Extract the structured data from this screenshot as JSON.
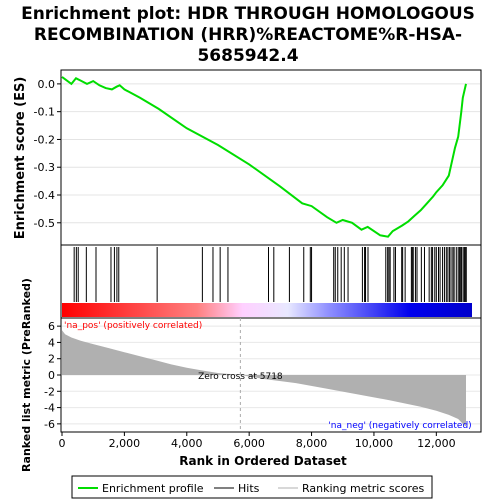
{
  "title_lines": [
    "Enrichment plot: HDR THROUGH HOMOLOGOUS",
    "RECOMBINATION (HRR)%REACTOME%R-HSA-",
    "5685942.4"
  ],
  "colors": {
    "es_line": "#00dd00",
    "hits": "#000000",
    "metric_fill": "#b0b0b0",
    "pos_label": "#ff0000",
    "neg_label": "#0000ff",
    "zero_line": "#aaaaaa"
  },
  "chart_data": [
    {
      "type": "line",
      "name": "enrichment-profile",
      "ylabel": "Enrichment score (ES)",
      "xlim": [
        0,
        13400
      ],
      "ylim": [
        -0.58,
        0.05
      ],
      "yticks": [
        0.0,
        -0.1,
        -0.2,
        -0.3,
        -0.4,
        -0.5
      ],
      "ytick_labels": [
        "0.0",
        "-0.1",
        "-0.2",
        "-0.3",
        "-0.4",
        "-0.5"
      ],
      "x": [
        0,
        300,
        450,
        600,
        800,
        1000,
        1200,
        1400,
        1600,
        1750,
        1850,
        2000,
        2500,
        3100,
        4000,
        5000,
        6000,
        7000,
        7700,
        8000,
        8500,
        8800,
        9000,
        9300,
        9600,
        9800,
        10200,
        10450,
        10600,
        10900,
        11100,
        11300,
        11500,
        11700,
        11900,
        12000,
        12200,
        12400,
        12500,
        12600,
        12700,
        12800,
        12850,
        12950
      ],
      "y": [
        0.025,
        0.0,
        0.02,
        0.012,
        0.0,
        0.01,
        -0.005,
        -0.015,
        -0.02,
        -0.01,
        -0.005,
        -0.02,
        -0.05,
        -0.09,
        -0.16,
        -0.22,
        -0.29,
        -0.37,
        -0.43,
        -0.44,
        -0.48,
        -0.5,
        -0.49,
        -0.5,
        -0.525,
        -0.515,
        -0.545,
        -0.55,
        -0.53,
        -0.51,
        -0.495,
        -0.475,
        -0.455,
        -0.43,
        -0.405,
        -0.39,
        -0.365,
        -0.33,
        -0.28,
        -0.23,
        -0.19,
        -0.1,
        -0.05,
        0.0
      ]
    },
    {
      "type": "barcode",
      "name": "hits",
      "positions": [
        390,
        460,
        520,
        780,
        1090,
        1570,
        1680,
        1760,
        1820,
        3050,
        4500,
        4840,
        5070,
        5320,
        6620,
        6790,
        7290,
        7750,
        7960,
        8000,
        8710,
        8760,
        8840,
        8950,
        9050,
        9170,
        9630,
        9700,
        9730,
        9810,
        10380,
        10440,
        10480,
        10520,
        10640,
        10690,
        10890,
        10920,
        11000,
        11200,
        11230,
        11260,
        11330,
        11380,
        11520,
        11620,
        11770,
        11840,
        11880,
        11950,
        12000,
        12070,
        12120,
        12200,
        12260,
        12320,
        12370,
        12420,
        12470,
        12530,
        12570,
        12640,
        12700,
        12740,
        12780,
        12810,
        12860,
        12900,
        12930,
        12960
      ]
    },
    {
      "type": "area",
      "name": "ranked-list-metric",
      "ylabel": "Ranked list metric (PreRanked)",
      "xlabel": "Rank in Ordered Dataset",
      "xlim": [
        0,
        13400
      ],
      "ylim": [
        -7,
        7
      ],
      "xticks": [
        0,
        2000,
        4000,
        6000,
        8000,
        10000,
        12000
      ],
      "xtick_labels": [
        "0",
        "2,000",
        "4,000",
        "6,000",
        "8,000",
        "10,000",
        "12,000"
      ],
      "yticks": [
        6,
        4,
        2,
        0,
        -2,
        -4,
        -6
      ],
      "ytick_labels": [
        "6",
        "4",
        "2",
        "0",
        "-2",
        "-4",
        "-6"
      ],
      "x": [
        0,
        100,
        300,
        600,
        1000,
        1500,
        2000,
        2500,
        3000,
        3500,
        4000,
        4500,
        5000,
        5718,
        6500,
        7500,
        8500,
        9500,
        10500,
        11500,
        12000,
        12400,
        12700,
        12900,
        12950
      ],
      "y": [
        5.5,
        5.0,
        4.6,
        4.2,
        3.8,
        3.3,
        2.8,
        2.3,
        1.8,
        1.3,
        0.9,
        0.55,
        0.25,
        0.0,
        -0.5,
        -1.0,
        -1.7,
        -2.4,
        -3.1,
        -3.9,
        -4.4,
        -4.9,
        -5.4,
        -6.2,
        -6.3
      ],
      "annotations": [
        "Zero cross at 5718",
        "'na_pos' (positively correlated)",
        "'na_neg' (negatively correlated)"
      ],
      "zero_cross": 5718
    }
  ],
  "legend": {
    "placement": "bottom",
    "items": [
      {
        "label": "Enrichment profile",
        "color": "#00dd00"
      },
      {
        "label": "Hits",
        "color": "#000000"
      },
      {
        "label": "Ranking metric scores",
        "color": "#b0b0b0"
      }
    ]
  }
}
